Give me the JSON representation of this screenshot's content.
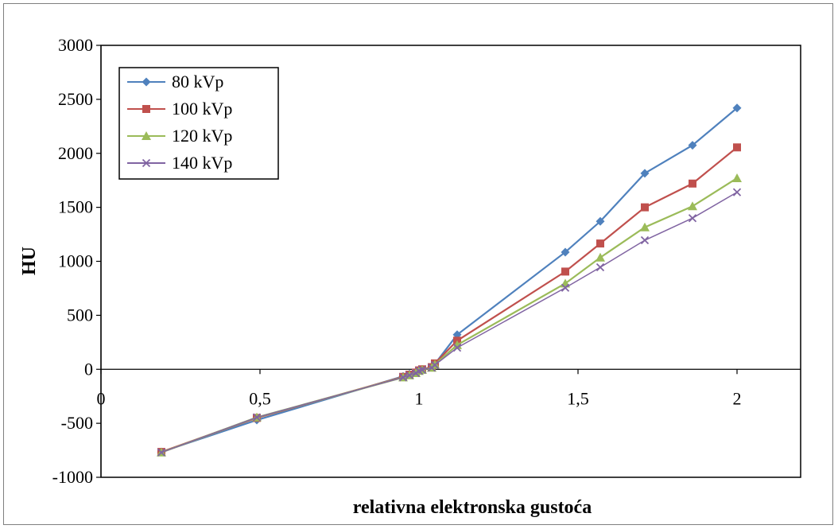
{
  "chart_data": {
    "type": "line",
    "title": "",
    "xlabel": "relativna elektronska gustoća",
    "ylabel": "HU",
    "xlim": [
      0,
      2.2
    ],
    "ylim": [
      -1000,
      3000
    ],
    "x_ticks": [
      0,
      0.5,
      1,
      1.5,
      2
    ],
    "x_tick_labels": [
      "0",
      "0,5",
      "1",
      "1,5",
      "2"
    ],
    "y_ticks": [
      -1000,
      -500,
      0,
      500,
      1000,
      1500,
      2000,
      2500,
      3000
    ],
    "y_tick_labels": [
      "-1000",
      "-500",
      "0",
      "500",
      "1000",
      "1500",
      "2000",
      "2500",
      "3000"
    ],
    "grid": false,
    "legend_position": "top-left",
    "x": [
      0.19,
      0.49,
      0.95,
      0.97,
      0.99,
      1.0,
      1.01,
      1.04,
      1.05,
      1.12,
      1.46,
      1.57,
      1.71,
      1.86,
      2.0
    ],
    "series": [
      {
        "name": "80 kVp",
        "color": "#4f81bd",
        "marker": "diamond",
        "values": [
          -765,
          -470,
          -65,
          -45,
          -25,
          -5,
          0,
          20,
          50,
          320,
          1085,
          1370,
          1815,
          2075,
          2420
        ]
      },
      {
        "name": "100 kVp",
        "color": "#c0504d",
        "marker": "square",
        "values": [
          -765,
          -450,
          -70,
          -50,
          -30,
          -10,
          0,
          20,
          55,
          265,
          905,
          1165,
          1500,
          1720,
          2055
        ]
      },
      {
        "name": "120 kVp",
        "color": "#9bbb59",
        "marker": "triangle",
        "values": [
          -770,
          -445,
          -75,
          -55,
          -35,
          -15,
          -5,
          15,
          45,
          225,
          795,
          1035,
          1315,
          1510,
          1770
        ]
      },
      {
        "name": "140 kVp",
        "color": "#8064a2",
        "marker": "x",
        "values": [
          -770,
          -445,
          -75,
          -55,
          -35,
          -15,
          -5,
          15,
          40,
          200,
          755,
          945,
          1195,
          1400,
          1640
        ]
      }
    ]
  }
}
